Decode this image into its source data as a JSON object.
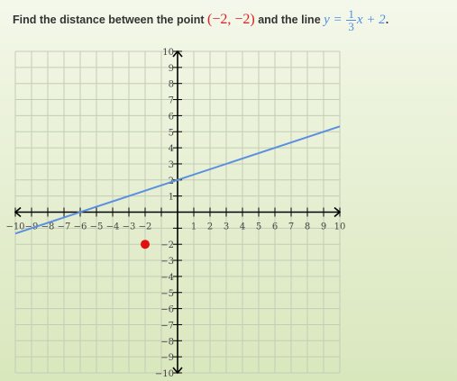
{
  "question": {
    "prefix": "Find the distance between the point",
    "point": "(−2, −2)",
    "middle": "and the line",
    "eq_lhs": "y =",
    "frac_num": "1",
    "frac_den": "3",
    "eq_rhs": "x + 2",
    "suffix": "."
  },
  "graph": {
    "x_range": [
      -10,
      10
    ],
    "y_range": [
      -10,
      10
    ],
    "grid_step": 1,
    "x_tick_labels": [
      "−10",
      "−9",
      "−8",
      "−7",
      "−6",
      "−5",
      "−4",
      "−3",
      "−2",
      "1",
      "2",
      "3",
      "4",
      "5",
      "6",
      "7",
      "8",
      "9",
      "10"
    ],
    "y_tick_labels": [
      "10",
      "9",
      "8",
      "7",
      "6",
      "5",
      "4",
      "3",
      "2",
      "1",
      "−2",
      "−3",
      "−4",
      "−5",
      "−6",
      "−7",
      "−8",
      "−9",
      "−10"
    ],
    "line": {
      "slope": 0.3333,
      "intercept": 2,
      "color": "#5b8fe0"
    },
    "point": {
      "x": -2,
      "y": -2,
      "color": "#e01010"
    },
    "colors": {
      "grid": "#c4ccb6",
      "axis": "#000000"
    }
  }
}
